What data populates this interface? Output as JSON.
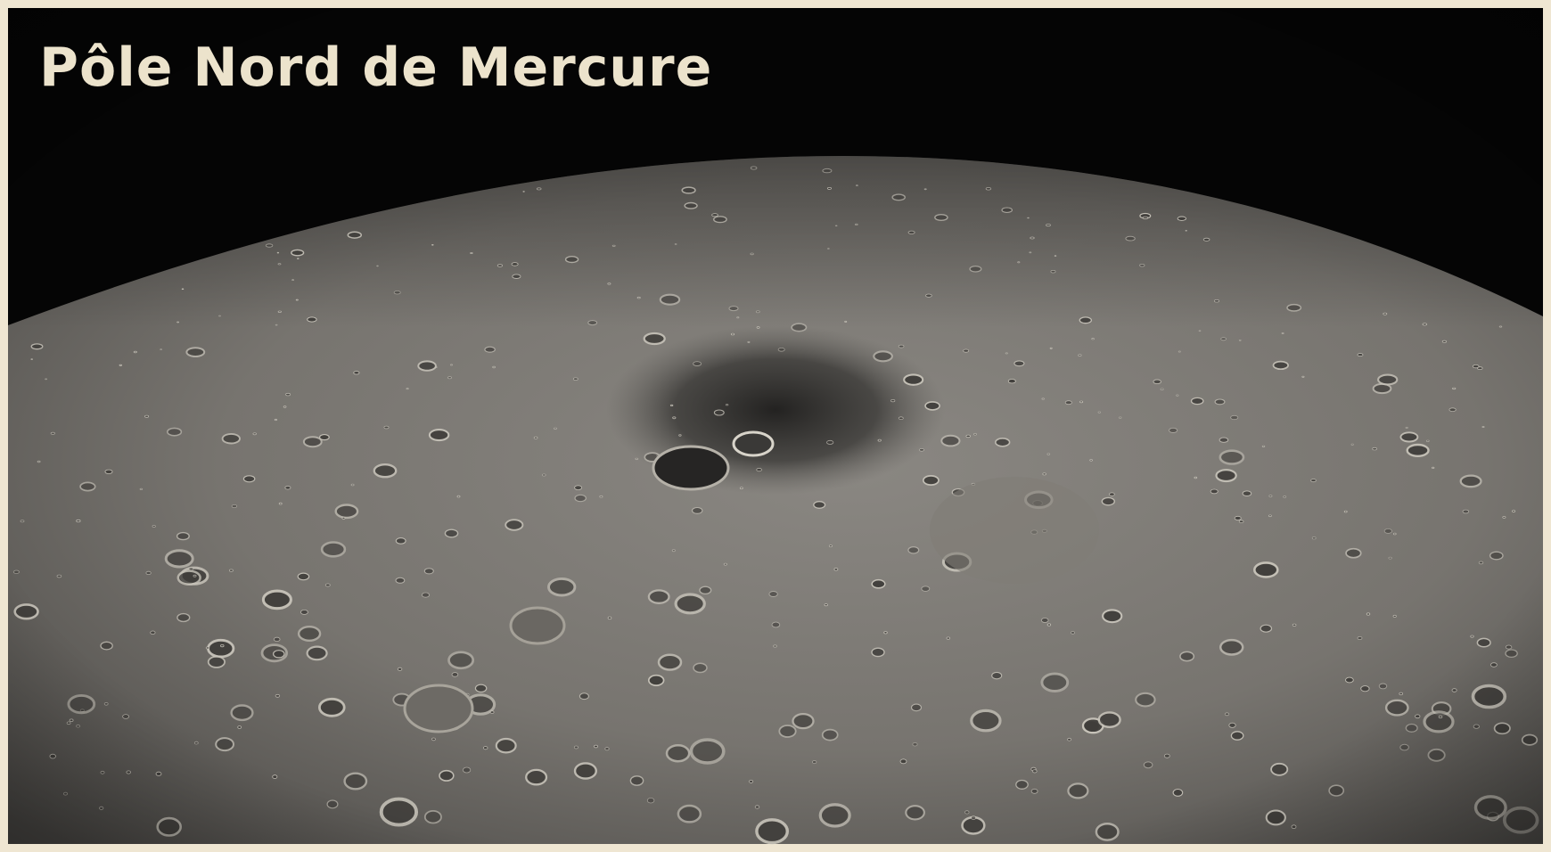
{
  "title": "Pôle Nord de Mercure"
}
